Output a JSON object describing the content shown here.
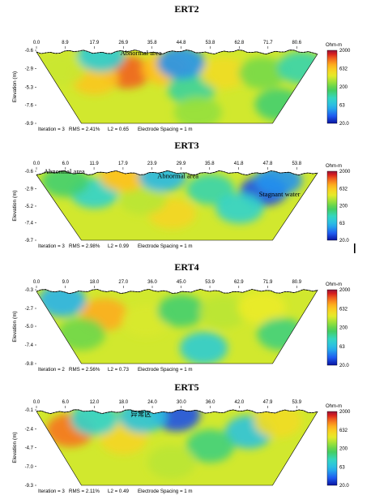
{
  "chart_data": [
    {
      "type": "heatmap",
      "title": "ERT2",
      "ylabel": "Elevation (m)",
      "x_ticks": [
        "0.0",
        "8.9",
        "17.9",
        "26.9",
        "35.8",
        "44.8",
        "53.8",
        "62.8",
        "71.7",
        "80.6"
      ],
      "y_ticks": [
        "-0.6",
        "-2.9",
        "-5.3",
        "-7.6",
        "-9.9"
      ],
      "colorbar": {
        "title": "Ohm-m",
        "ticks": [
          "2000",
          "632",
          "200",
          "63",
          "20.0"
        ],
        "scale": "log"
      },
      "annotations": [
        {
          "text": "Abnormal area",
          "x": 26.0,
          "y": -0.9
        }
      ],
      "footer": {
        "iteration": "Iteration = 3",
        "rms": "RMS = 2.41%",
        "l2": "L2 = 0.65",
        "spacing": "Electrode Spacing = 1 m"
      },
      "blobs": [
        {
          "x": 28,
          "y": -3.4,
          "v": 1200
        },
        {
          "x": 18,
          "y": -4.2,
          "v": 650
        },
        {
          "x": 40,
          "y": -3.0,
          "v": 700
        },
        {
          "x": 8,
          "y": -3.0,
          "v": 350
        },
        {
          "x": 48,
          "y": -5.5,
          "v": 120
        },
        {
          "x": 58,
          "y": -3.5,
          "v": 500
        },
        {
          "x": 70,
          "y": -3.5,
          "v": 220
        },
        {
          "x": 82,
          "y": -2.8,
          "v": 110
        },
        {
          "x": 44.8,
          "y": -2.2,
          "v": 45
        },
        {
          "x": 20,
          "y": -1.3,
          "v": 80
        },
        {
          "x": 75,
          "y": -7.5,
          "v": 150
        },
        {
          "x": 50,
          "y": -8.5,
          "v": 260
        }
      ]
    },
    {
      "type": "heatmap",
      "title": "ERT3",
      "ylabel": "Elevation (m)",
      "x_ticks": [
        "0.0",
        "6.0",
        "11.9",
        "17.9",
        "23.9",
        "29.9",
        "35.8",
        "41.8",
        "47.8",
        "53.8"
      ],
      "y_ticks": [
        "-0.6",
        "-2.9",
        "-5.2",
        "-7.4",
        "-9.7"
      ],
      "colorbar": {
        "title": "Ohm-m",
        "ticks": [
          "2000",
          "632",
          "200",
          "63",
          "20.0"
        ],
        "scale": "log"
      },
      "annotations": [
        {
          "text": "Abnormal area",
          "x": 1.5,
          "y": -0.6
        },
        {
          "text": "Abnormal area",
          "x": 25.0,
          "y": -1.2
        },
        {
          "text": "Stagnant water",
          "x": 46.0,
          "y": -3.6
        }
      ],
      "footer": {
        "iteration": "Iteration = 3",
        "rms": "RMS = 2.98%",
        "l2": "L2 = 0.99",
        "spacing": "Electrode Spacing = 1 m"
      },
      "blobs": [
        {
          "x": 47,
          "y": -3.2,
          "v": 30
        },
        {
          "x": 50,
          "y": -1.8,
          "v": 45
        },
        {
          "x": 28,
          "y": -6.2,
          "v": 550
        },
        {
          "x": 22,
          "y": -4.3,
          "v": 320
        },
        {
          "x": 12,
          "y": -3.5,
          "v": 90
        },
        {
          "x": 6,
          "y": -2.0,
          "v": 150
        },
        {
          "x": 36,
          "y": -3.0,
          "v": 110
        },
        {
          "x": 42,
          "y": -5.5,
          "v": 90
        },
        {
          "x": 18,
          "y": -1.3,
          "v": 700
        },
        {
          "x": 26,
          "y": -1.3,
          "v": 60
        }
      ]
    },
    {
      "type": "heatmap",
      "title": "ERT4",
      "ylabel": "Elevation (m)",
      "x_ticks": [
        "0.0",
        "9.0",
        "18.0",
        "27.0",
        "36.0",
        "45.0",
        "53.9",
        "62.9",
        "71.9",
        "80.9"
      ],
      "y_ticks": [
        "-0.3",
        "-2.7",
        "-5.0",
        "-7.4",
        "-9.8"
      ],
      "colorbar": {
        "title": "Ohm-m",
        "ticks": [
          "2000",
          "632",
          "200",
          "63",
          "20.0"
        ],
        "scale": "log"
      },
      "annotations": [],
      "footer": {
        "iteration": "Iteration = 2",
        "rms": "RMS = 2.56%",
        "l2": "L2 = 0.73",
        "spacing": "Electrode Spacing = 1 m"
      },
      "blobs": [
        {
          "x": 21,
          "y": -3.5,
          "v": 800
        },
        {
          "x": 34,
          "y": -4.3,
          "v": 380
        },
        {
          "x": 8,
          "y": -1.7,
          "v": 55
        },
        {
          "x": 45,
          "y": -3.0,
          "v": 150
        },
        {
          "x": 58,
          "y": -3.2,
          "v": 320
        },
        {
          "x": 70,
          "y": -2.6,
          "v": 420
        },
        {
          "x": 52,
          "y": -7.8,
          "v": 80
        },
        {
          "x": 76,
          "y": -6.0,
          "v": 140
        },
        {
          "x": 14,
          "y": -6.0,
          "v": 210
        }
      ]
    },
    {
      "type": "heatmap",
      "title": "ERT5",
      "ylabel": "Elevation (m)",
      "x_ticks": [
        "0.0",
        "6.0",
        "12.0",
        "18.0",
        "24.0",
        "30.0",
        "36.0",
        "42.0",
        "47.9",
        "53.9"
      ],
      "y_ticks": [
        "-0.1",
        "-2.4",
        "-4.7",
        "-7.0",
        "-9.3"
      ],
      "colorbar": {
        "title": "Ohm-m",
        "ticks": [
          "2000",
          "632",
          "200",
          "63",
          "20.0"
        ],
        "scale": "log"
      },
      "annotations": [
        {
          "text": "异常区",
          "x": 19.5,
          "y": -0.6
        }
      ],
      "footer": {
        "iteration": "Iteration = 3",
        "rms": "RMS = 2.11%",
        "l2": "L2 = 0.49",
        "spacing": "Electrode Spacing = 1 m"
      },
      "blobs": [
        {
          "x": 7,
          "y": -2.6,
          "v": 1100
        },
        {
          "x": 18,
          "y": -3.5,
          "v": 550
        },
        {
          "x": 29,
          "y": -0.7,
          "v": 30
        },
        {
          "x": 22,
          "y": -0.9,
          "v": 70
        },
        {
          "x": 44,
          "y": -2.8,
          "v": 70
        },
        {
          "x": 50,
          "y": -1.5,
          "v": 500
        },
        {
          "x": 36,
          "y": -4.5,
          "v": 140
        },
        {
          "x": 28,
          "y": -6.5,
          "v": 320
        },
        {
          "x": 12,
          "y": -1.2,
          "v": 90
        }
      ]
    }
  ]
}
